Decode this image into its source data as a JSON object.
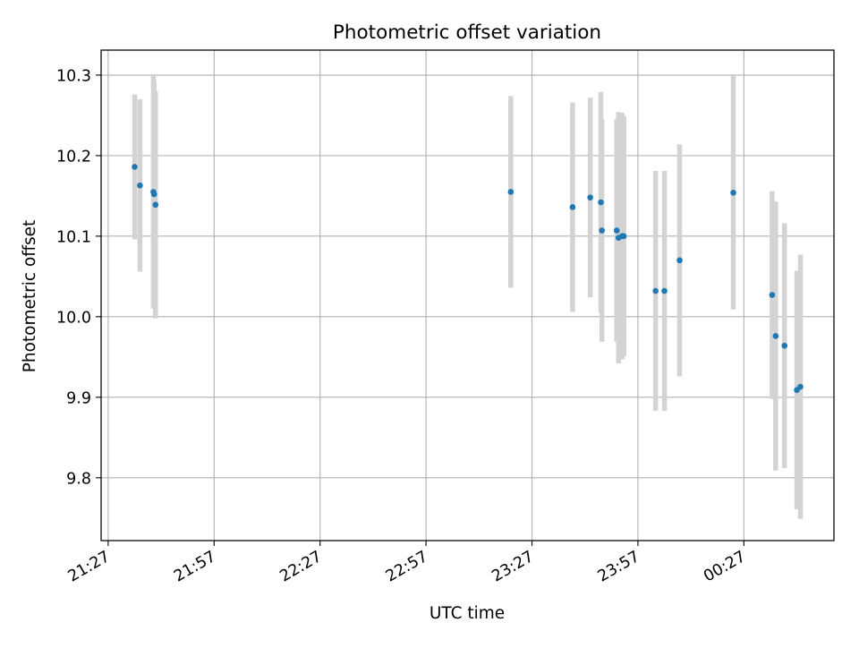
{
  "chart_data": {
    "type": "scatter",
    "title": "Photometric offset variation",
    "xlabel": "UTC time",
    "ylabel": "Photometric offset",
    "x_ticks": [
      "21:27",
      "21:57",
      "22:27",
      "22:57",
      "23:27",
      "23:57",
      "00:27"
    ],
    "x_tick_minutes": [
      0,
      30,
      60,
      90,
      120,
      150,
      180
    ],
    "xlim_minutes": [
      -2,
      205.5
    ],
    "y_ticks": [
      "9.8",
      "9.9",
      "10.0",
      "10.1",
      "10.2",
      "10.3"
    ],
    "y_tick_values": [
      9.8,
      9.9,
      10.0,
      10.1,
      10.2,
      10.3
    ],
    "ylim": [
      9.722,
      10.331
    ],
    "grid": true,
    "legend": "none",
    "colors": {
      "point": "#1f77b4",
      "errorbar": "#d3d3d3",
      "grid": "#b0b0b0"
    },
    "series": [
      {
        "points": [
          {
            "x": 7.5,
            "y": 10.186,
            "err": 0.09
          },
          {
            "x": 9.0,
            "y": 10.163,
            "err": 0.107
          },
          {
            "x": 12.8,
            "y": 10.155,
            "err": 0.145
          },
          {
            "x": 13.0,
            "y": 10.152,
            "err": 0.14
          },
          {
            "x": 13.4,
            "y": 10.139,
            "err": 0.141
          },
          {
            "x": 114.0,
            "y": 10.155,
            "err": 0.119
          },
          {
            "x": 131.5,
            "y": 10.136,
            "err": 0.13
          },
          {
            "x": 136.5,
            "y": 10.148,
            "err": 0.124
          },
          {
            "x": 139.5,
            "y": 10.142,
            "err": 0.137
          },
          {
            "x": 139.8,
            "y": 10.107,
            "err": 0.138
          },
          {
            "x": 144.0,
            "y": 10.107,
            "err": 0.138
          },
          {
            "x": 144.5,
            "y": 10.098,
            "err": 0.156
          },
          {
            "x": 145.5,
            "y": 10.1,
            "err": 0.153
          },
          {
            "x": 146.0,
            "y": 10.1,
            "err": 0.149
          },
          {
            "x": 155.0,
            "y": 10.032,
            "err": 0.149
          },
          {
            "x": 157.5,
            "y": 10.032,
            "err": 0.149
          },
          {
            "x": 161.8,
            "y": 10.07,
            "err": 0.144
          },
          {
            "x": 177.0,
            "y": 10.154,
            "err": 0.145
          },
          {
            "x": 188.0,
            "y": 10.027,
            "err": 0.129
          },
          {
            "x": 189.0,
            "y": 9.976,
            "err": 0.167
          },
          {
            "x": 191.5,
            "y": 9.964,
            "err": 0.152
          },
          {
            "x": 195.0,
            "y": 9.909,
            "err": 0.148
          },
          {
            "x": 196.0,
            "y": 9.913,
            "err": 0.164
          }
        ]
      }
    ]
  }
}
